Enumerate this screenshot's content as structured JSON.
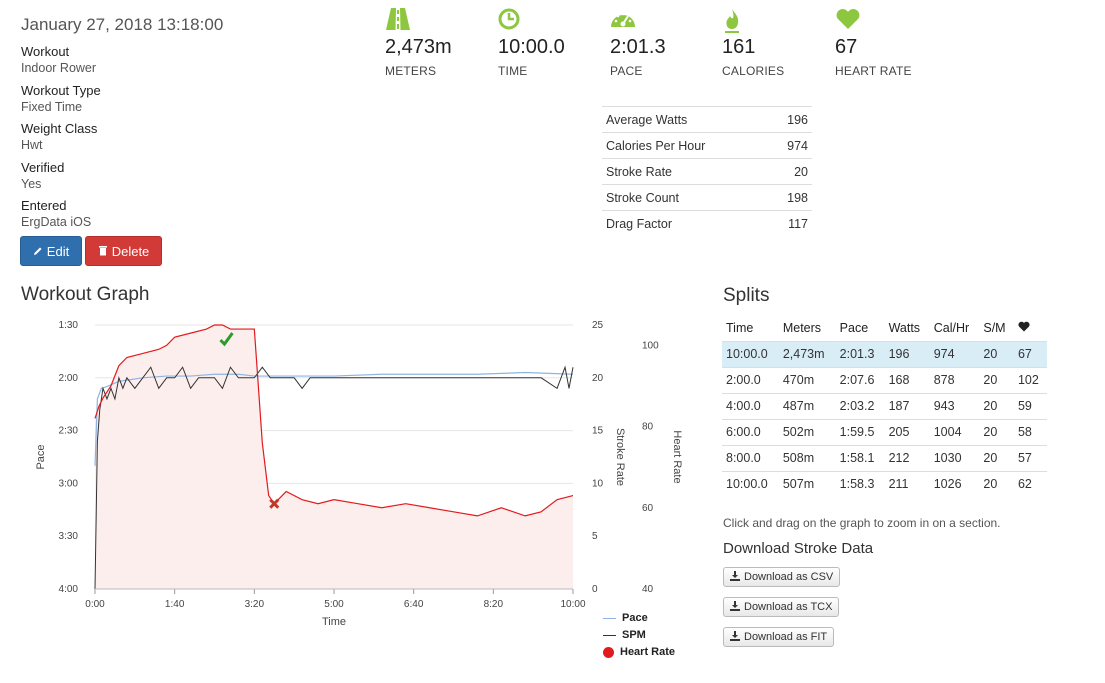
{
  "workout": {
    "date": "January 27, 2018 13:18:00",
    "fields": [
      {
        "label": "Workout",
        "value": "Indoor Rower"
      },
      {
        "label": "Workout Type",
        "value": "Fixed Time"
      },
      {
        "label": "Weight Class",
        "value": "Hwt"
      },
      {
        "label": "Verified",
        "value": "Yes"
      },
      {
        "label": "Entered",
        "value": "ErgData iOS"
      }
    ],
    "edit_label": "Edit",
    "delete_label": "Delete"
  },
  "stats": [
    {
      "icon": "road-icon",
      "value": "2,473m",
      "label": "METERS"
    },
    {
      "icon": "clock-icon",
      "value": "10:00.0",
      "label": "TIME"
    },
    {
      "icon": "speedometer-icon",
      "value": "2:01.3",
      "label": "PACE"
    },
    {
      "icon": "flame-icon",
      "value": "161",
      "label": "CALORIES"
    },
    {
      "icon": "heart-icon",
      "value": "67",
      "label": "HEART RATE"
    }
  ],
  "metrics": [
    {
      "label": "Average Watts",
      "value": "196"
    },
    {
      "label": "Calories Per Hour",
      "value": "974"
    },
    {
      "label": "Stroke Rate",
      "value": "20"
    },
    {
      "label": "Stroke Count",
      "value": "198"
    },
    {
      "label": "Drag Factor",
      "value": "117"
    }
  ],
  "graph": {
    "title": "Workout Graph",
    "legend": [
      "Pace",
      "SPM",
      "Heart Rate"
    ]
  },
  "splits": {
    "title": "Splits",
    "headers": [
      "Time",
      "Meters",
      "Pace",
      "Watts",
      "Cal/Hr",
      "S/M"
    ],
    "rows": [
      [
        "10:00.0",
        "2,473m",
        "2:01.3",
        "196",
        "974",
        "20",
        "67"
      ],
      [
        "2:00.0",
        "470m",
        "2:07.6",
        "168",
        "878",
        "20",
        "102"
      ],
      [
        "4:00.0",
        "487m",
        "2:03.2",
        "187",
        "943",
        "20",
        "59"
      ],
      [
        "6:00.0",
        "502m",
        "1:59.5",
        "205",
        "1004",
        "20",
        "58"
      ],
      [
        "8:00.0",
        "508m",
        "1:58.1",
        "212",
        "1030",
        "20",
        "57"
      ],
      [
        "10:00.0",
        "507m",
        "1:58.3",
        "211",
        "1026",
        "20",
        "62"
      ]
    ],
    "hint": "Click and drag on the graph to zoom in on a section.",
    "download_title": "Download Stroke Data",
    "downloads": [
      "Download as CSV",
      "Download as TCX",
      "Download as FIT"
    ]
  },
  "colors": {
    "accent_green": "#8dc63f",
    "pace_line": "#8fb4e3",
    "spm_line": "#333333",
    "hr_line": "#e31a1c",
    "hr_fill": "#fdeeee",
    "edit_button": "#2f6fae",
    "delete_button": "#d13a36",
    "highlight_row": "#d9edf7"
  },
  "chart_data": {
    "type": "line",
    "xlabel": "Time",
    "x_ticks": [
      "0:00",
      "1:40",
      "3:20",
      "5:00",
      "6:40",
      "8:20",
      "10:00"
    ],
    "xlim_seconds": [
      0,
      600
    ],
    "y_axes": [
      {
        "label": "Pace",
        "ticks": [
          "1:30",
          "2:00",
          "2:30",
          "3:00",
          "3:30",
          "4:00"
        ],
        "range_seconds": [
          90,
          240
        ],
        "inverted": true
      },
      {
        "label": "Stroke Rate",
        "ticks": [
          "25",
          "20",
          "15",
          "10",
          "5",
          "0"
        ],
        "range": [
          0,
          25
        ]
      },
      {
        "label": "Heart Rate",
        "ticks": [
          "100",
          "80",
          "60",
          "40"
        ],
        "range": [
          40,
          105
        ]
      }
    ],
    "series": [
      {
        "name": "Pace",
        "axis": "Pace",
        "x": [
          0,
          3,
          8,
          15,
          30,
          60,
          90,
          120,
          150,
          180,
          200,
          240,
          300,
          360,
          420,
          480,
          540,
          600
        ],
        "y": [
          170,
          132,
          126,
          125,
          122,
          120,
          119,
          119,
          118,
          118,
          119,
          119,
          119,
          118,
          118,
          118,
          117,
          118
        ]
      },
      {
        "name": "SPM",
        "axis": "Stroke Rate",
        "x": [
          0,
          3,
          6,
          10,
          15,
          20,
          25,
          30,
          35,
          40,
          50,
          60,
          70,
          80,
          90,
          100,
          110,
          120,
          130,
          140,
          150,
          160,
          170,
          180,
          190,
          200,
          210,
          220,
          230,
          240,
          250,
          260,
          270,
          280,
          300,
          320,
          340,
          360,
          380,
          400,
          420,
          440,
          460,
          480,
          500,
          520,
          540,
          560,
          580,
          590,
          595,
          600
        ],
        "y": [
          0,
          14,
          17,
          19,
          18,
          19,
          18,
          20,
          19,
          20,
          19,
          20,
          21,
          19,
          20,
          20,
          21,
          19,
          20,
          20,
          20,
          19,
          21,
          20,
          20,
          20,
          21,
          20,
          20,
          20,
          20,
          19,
          20,
          20,
          20,
          20,
          20,
          20,
          20,
          20,
          20,
          20,
          20,
          20,
          20,
          20,
          20,
          20,
          19,
          21,
          19,
          21
        ]
      },
      {
        "name": "Heart Rate",
        "axis": "Heart Rate",
        "x": [
          0,
          5,
          10,
          20,
          30,
          40,
          60,
          80,
          90,
          100,
          120,
          140,
          150,
          160,
          170,
          180,
          190,
          200,
          205,
          210,
          218,
          225,
          240,
          260,
          280,
          300,
          330,
          360,
          390,
          420,
          450,
          480,
          510,
          540,
          560,
          580,
          600
        ],
        "y": [
          82,
          85,
          87,
          90,
          95,
          97,
          98,
          99,
          100,
          102,
          103,
          104,
          105,
          105,
          104,
          104,
          104,
          104,
          90,
          76,
          63,
          61,
          64,
          62,
          61,
          62,
          61,
          60,
          61,
          60,
          59,
          58,
          60,
          58,
          59,
          62,
          63
        ]
      }
    ],
    "legend_position": "bottom-right"
  }
}
